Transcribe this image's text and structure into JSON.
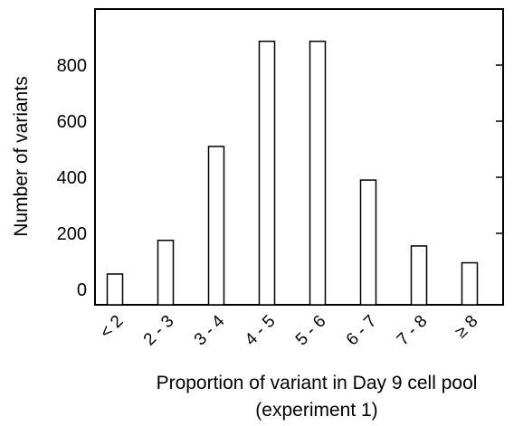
{
  "chart_data": {
    "type": "bar",
    "title": "",
    "categories": [
      "< 2",
      "2 - 3",
      "3 - 4",
      "4 - 5",
      "5 - 6",
      "6 - 7",
      "7 - 8",
      "≥ 8"
    ],
    "values": [
      55,
      175,
      510,
      885,
      885,
      390,
      155,
      95
    ],
    "ylabel": "Number of variants",
    "xlabel_line1": "Proportion of variant in Day 9 cell pool",
    "xlabel_line2": "(experiment 1)",
    "yticks": [
      "0",
      "200",
      "400",
      "600",
      "800"
    ],
    "ylim": [
      0,
      1000
    ],
    "grid": false,
    "legend": "none",
    "colors": {
      "bar_fill": "#ffffff",
      "bar_stroke": "#000000",
      "axis": "#000000"
    }
  }
}
